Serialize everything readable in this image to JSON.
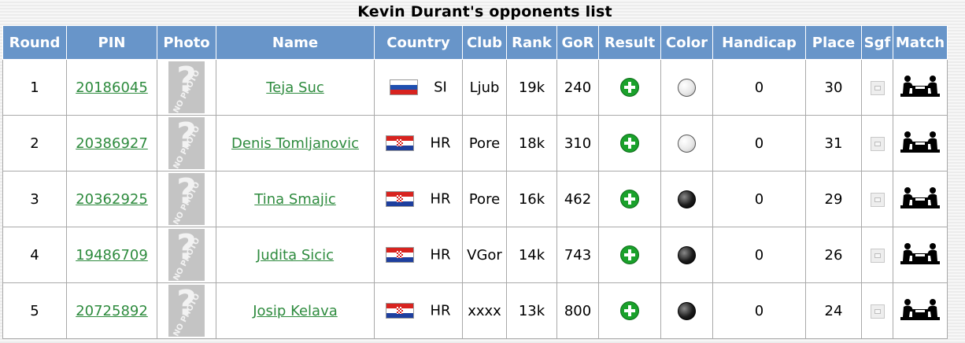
{
  "title": "Kevin Durant's opponents list",
  "headers": {
    "round": "Round",
    "pin": "PIN",
    "photo": "Photo",
    "name": "Name",
    "country": "Country",
    "club": "Club",
    "rank": "Rank",
    "gor": "GoR",
    "result": "Result",
    "color": "Color",
    "handicap": "Handicap",
    "place": "Place",
    "sgf": "Sgf",
    "match": "Match"
  },
  "photo_placeholder": {
    "glyph": "?",
    "text": "NO PHOTO"
  },
  "rows": [
    {
      "round": "1",
      "pin": "20186045",
      "name": "Teja Suc",
      "flag": "si",
      "country": "SI",
      "club": "Ljub",
      "rank": "19k",
      "gor": "240",
      "result": "win",
      "color": "white",
      "handicap": "0",
      "place": "30"
    },
    {
      "round": "2",
      "pin": "20386927",
      "name": "Denis Tomljanovic",
      "flag": "hr",
      "country": "HR",
      "club": "Pore",
      "rank": "18k",
      "gor": "310",
      "result": "win",
      "color": "white",
      "handicap": "0",
      "place": "31"
    },
    {
      "round": "3",
      "pin": "20362925",
      "name": "Tina Smajic",
      "flag": "hr",
      "country": "HR",
      "club": "Pore",
      "rank": "16k",
      "gor": "462",
      "result": "win",
      "color": "black",
      "handicap": "0",
      "place": "29"
    },
    {
      "round": "4",
      "pin": "19486709",
      "name": "Judita Sicic",
      "flag": "hr",
      "country": "HR",
      "club": "VGor",
      "rank": "14k",
      "gor": "743",
      "result": "win",
      "color": "black",
      "handicap": "0",
      "place": "26"
    },
    {
      "round": "5",
      "pin": "20725892",
      "name": "Josip Kelava",
      "flag": "hr",
      "country": "HR",
      "club": "xxxx",
      "rank": "13k",
      "gor": "800",
      "result": "win",
      "color": "black",
      "handicap": "0",
      "place": "24"
    }
  ],
  "colors": {
    "header_bg": "#6895c9",
    "link": "#2e8b3e",
    "win_icon": "#1aa12b"
  }
}
